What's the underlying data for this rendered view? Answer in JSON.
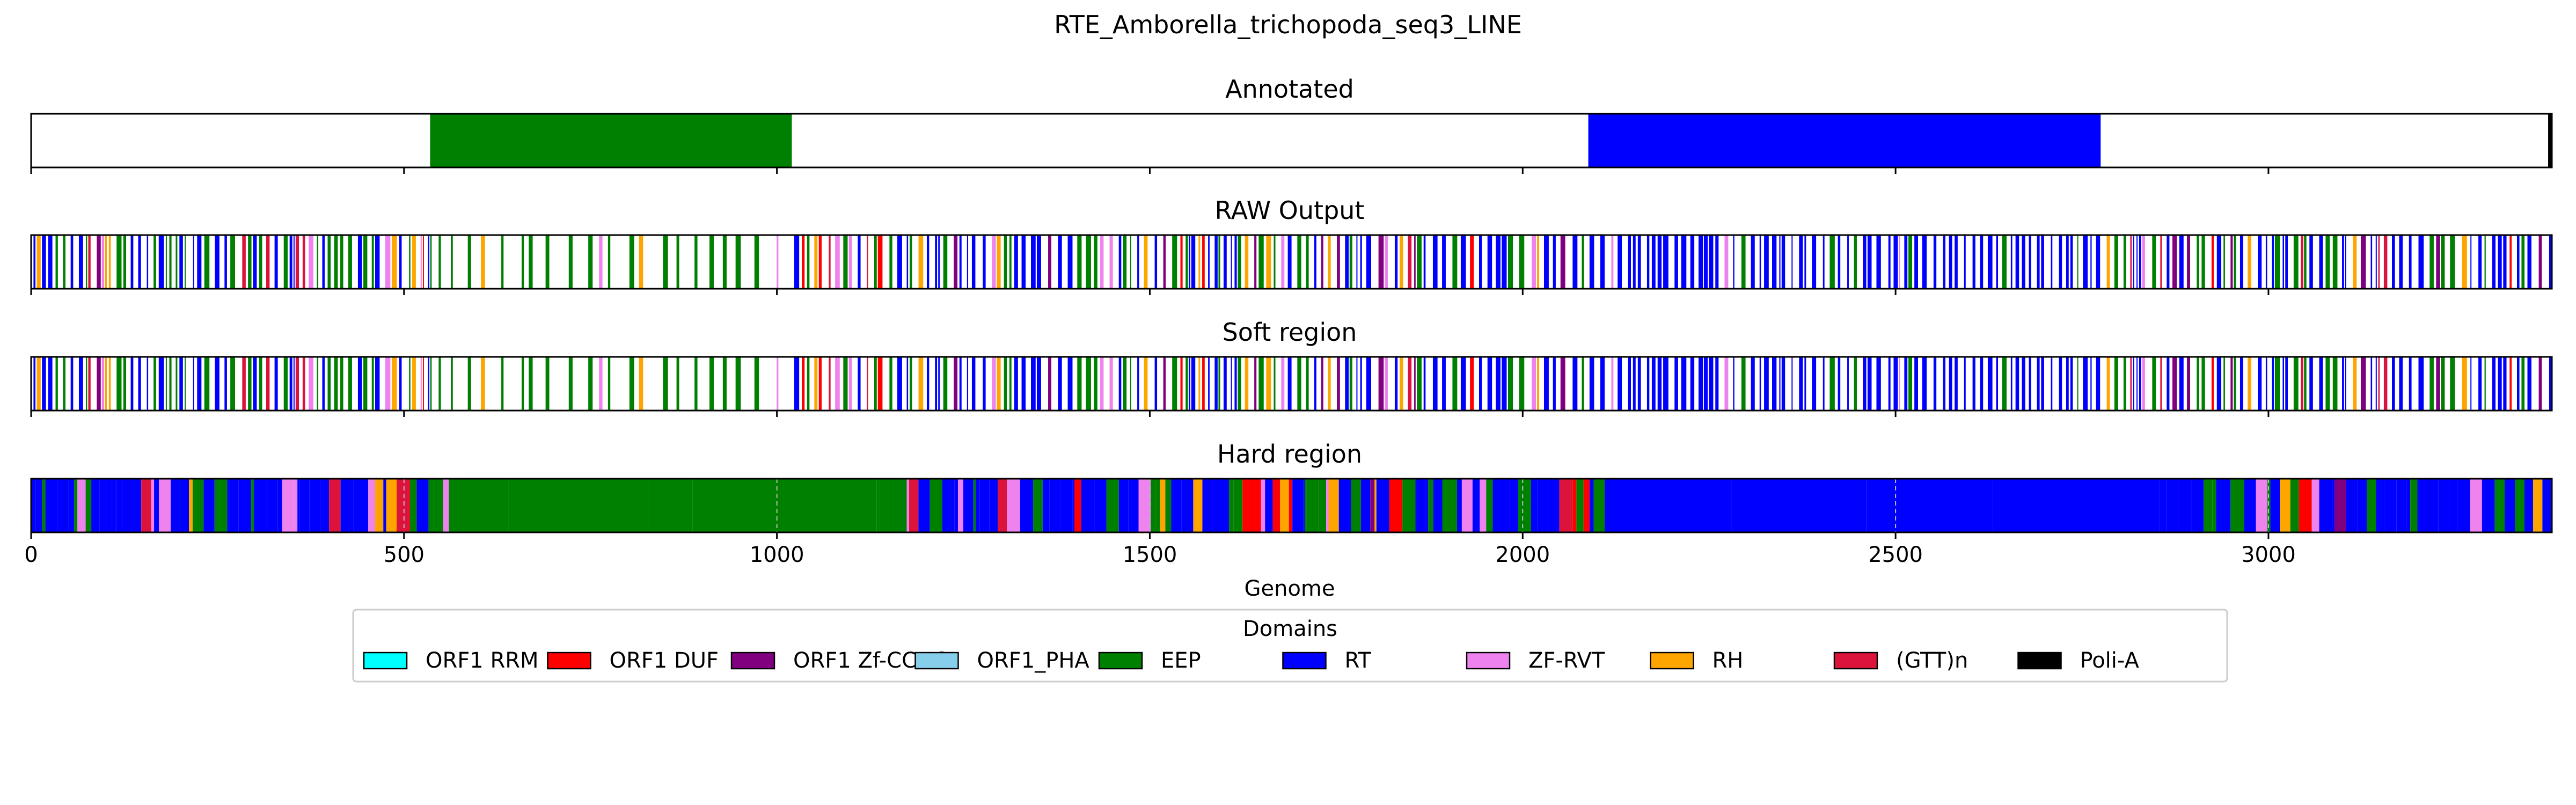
{
  "chart_data": {
    "type": "bar",
    "title": "RTE_Amborella_trichopoda_seq3_LINE",
    "xlabel": "Genome",
    "xlim": [
      0,
      3380
    ],
    "xticks": [
      0,
      500,
      1000,
      1500,
      2000,
      2500,
      3000
    ],
    "legend": {
      "title": "Domains",
      "placement": "bottom-center",
      "entries": [
        {
          "name": "ORF1 RRM",
          "color": "#00ffff"
        },
        {
          "name": "ORF1 DUF",
          "color": "#ff0000"
        },
        {
          "name": "ORF1 Zf-CCHC",
          "color": "#800080"
        },
        {
          "name": "ORF1_PHA",
          "color": "#87ceeb"
        },
        {
          "name": "EEP",
          "color": "#008000"
        },
        {
          "name": "RT",
          "color": "#0000ff"
        },
        {
          "name": "ZF-RVT",
          "color": "#ee82ee"
        },
        {
          "name": "RH",
          "color": "#ffa500"
        },
        {
          "name": "(GTT)n",
          "color": "#dc143c"
        },
        {
          "name": "Poli-A",
          "color": "#000000"
        }
      ]
    },
    "tracks": [
      {
        "title": "Annotated",
        "segments": [
          {
            "start": 535,
            "end": 1020,
            "domain": "EEP"
          },
          {
            "start": 2088,
            "end": 2775,
            "domain": "RT"
          },
          {
            "start": 3375,
            "end": 3380,
            "domain": "Poli-A"
          }
        ]
      },
      {
        "title": "RAW Output",
        "pattern": "scattered"
      },
      {
        "title": "Soft region",
        "pattern": "scattered"
      },
      {
        "title": "Hard region",
        "pattern": "dense"
      }
    ]
  }
}
